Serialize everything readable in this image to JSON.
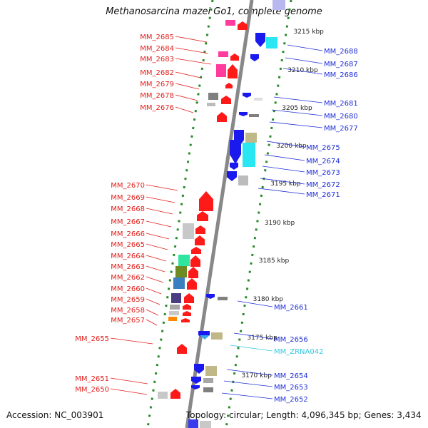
{
  "title": "Methanosarcina mazei Go1, complete genome",
  "footer": {
    "accession": "Accession: NC_003901",
    "summary": "Topology: circular; Length: 4,096,345 bp; Genes: 3,434"
  },
  "colors": {
    "label_left": "#e0201c",
    "label_right": "#1f2fd6",
    "label_rna": "#33c7e0",
    "strand_plus": "#ff1a1a",
    "strand_minus": "#1a1aee",
    "rna_arrow": "#3aa7e8",
    "genome_line": "#888888",
    "guide_dots": "#2a8a2a"
  },
  "ticks": [
    {
      "label": "3215 kbp"
    },
    {
      "label": "3210 kbp"
    },
    {
      "label": "3205 kbp"
    },
    {
      "label": "3200 kbp"
    },
    {
      "label": "3195 kbp"
    },
    {
      "label": "3190 kbp"
    },
    {
      "label": "3185 kbp"
    },
    {
      "label": "3180 kbp"
    },
    {
      "label": "3175 kbp"
    },
    {
      "label": "3170 kbp"
    }
  ],
  "left_genes": [
    {
      "name": "MM_2685"
    },
    {
      "name": "MM_2684"
    },
    {
      "name": "MM_2683"
    },
    {
      "name": "MM_2682"
    },
    {
      "name": "MM_2679"
    },
    {
      "name": "MM_2678"
    },
    {
      "name": "MM_2676"
    },
    {
      "name": "MM_2670"
    },
    {
      "name": "MM_2669"
    },
    {
      "name": "MM_2668"
    },
    {
      "name": "MM_2667"
    },
    {
      "name": "MM_2666"
    },
    {
      "name": "MM_2665"
    },
    {
      "name": "MM_2664"
    },
    {
      "name": "MM_2663"
    },
    {
      "name": "MM_2662"
    },
    {
      "name": "MM_2660"
    },
    {
      "name": "MM_2659"
    },
    {
      "name": "MM_2658"
    },
    {
      "name": "MM_2657"
    },
    {
      "name": "MM_2655"
    },
    {
      "name": "MM_2651"
    },
    {
      "name": "MM_2650"
    }
  ],
  "right_genes": [
    {
      "name": "MM_2688"
    },
    {
      "name": "MM_2687"
    },
    {
      "name": "MM_2686"
    },
    {
      "name": "MM_2681"
    },
    {
      "name": "MM_2680"
    },
    {
      "name": "MM_2677"
    },
    {
      "name": "MM_2675"
    },
    {
      "name": "MM_2674"
    },
    {
      "name": "MM_2673"
    },
    {
      "name": "MM_2672"
    },
    {
      "name": "MM_2671"
    },
    {
      "name": "MM_2661"
    },
    {
      "name": "MM_2656"
    },
    {
      "name": "MM_ZRNA042",
      "rna": true
    },
    {
      "name": "MM_2654"
    },
    {
      "name": "MM_2653"
    },
    {
      "name": "MM_2652"
    }
  ]
}
